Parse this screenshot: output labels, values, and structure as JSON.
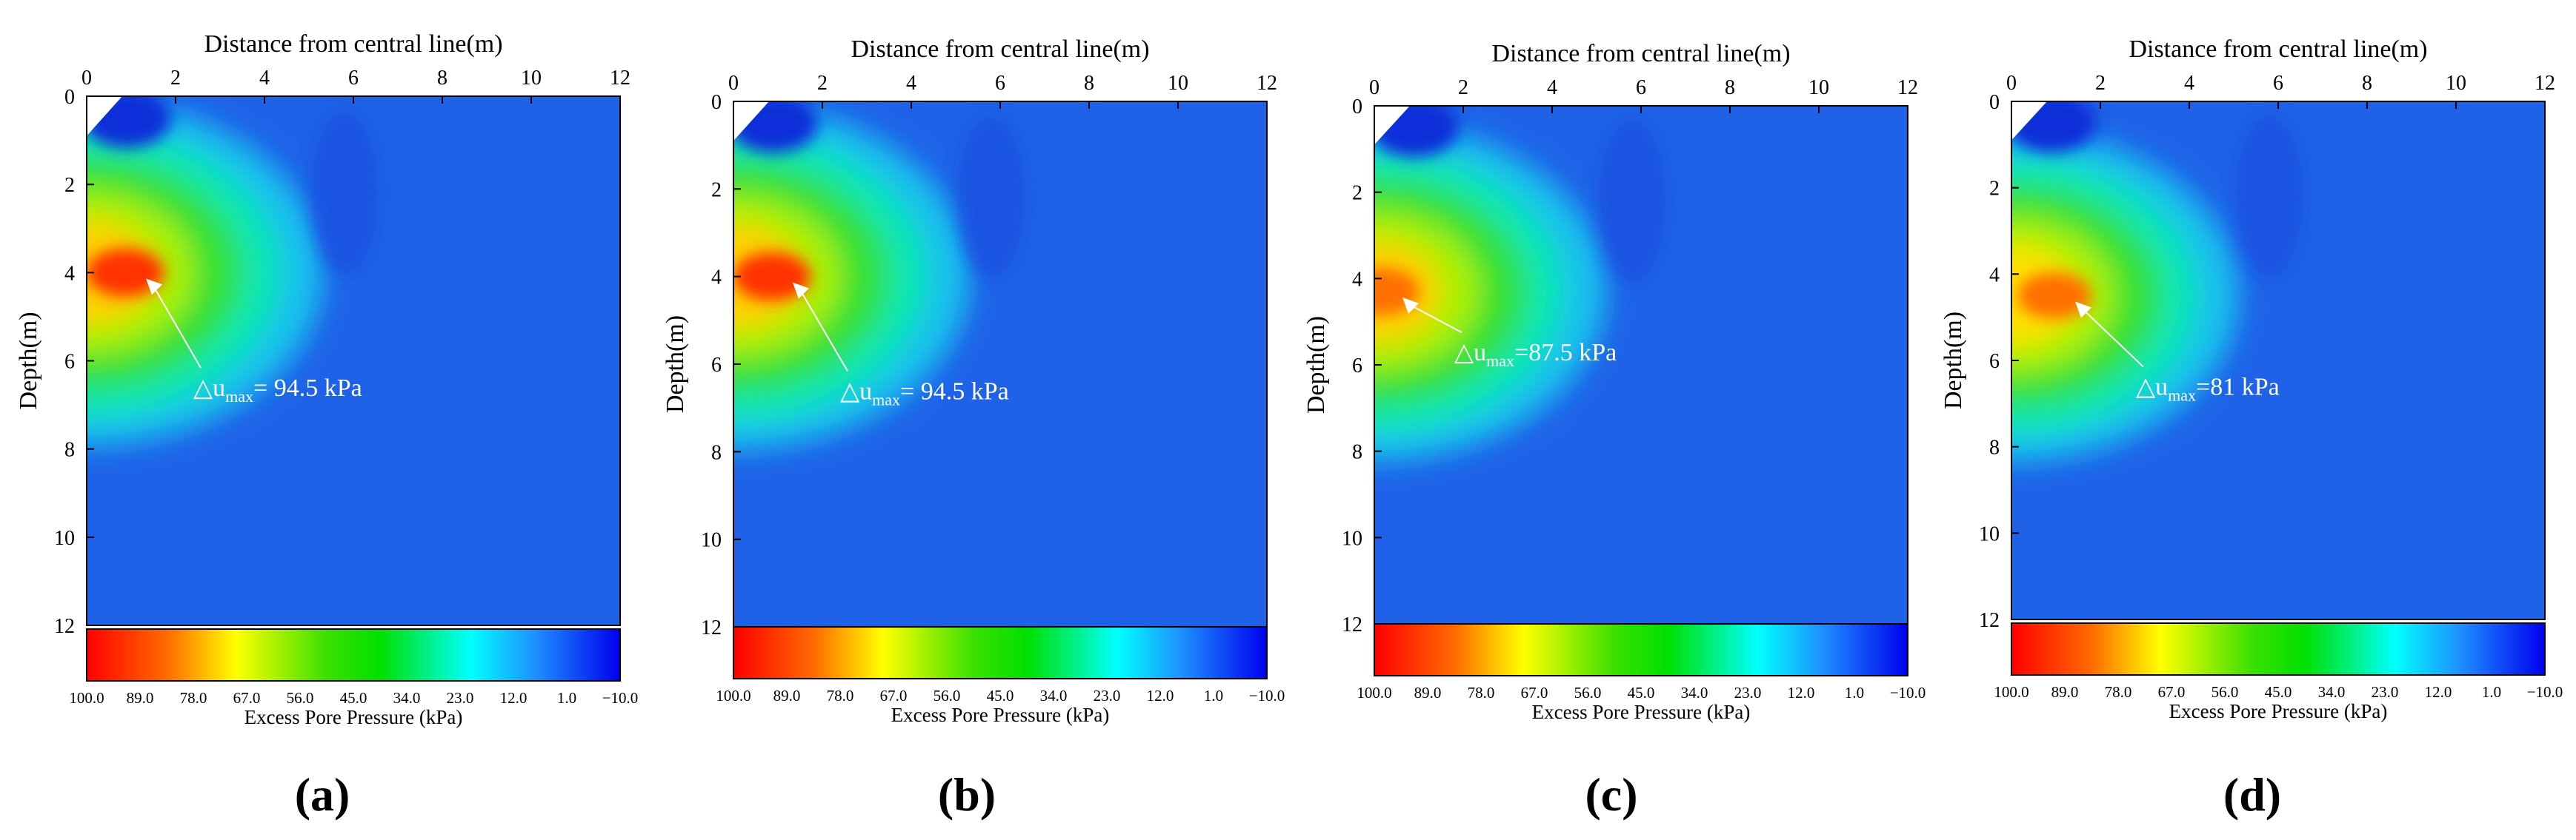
{
  "figure_labels": [
    "(a)",
    "(b)",
    "(c)",
    "(d)"
  ],
  "chart_data": [
    {
      "type": "heatmap",
      "panel": "(a)",
      "title": "Distance from central line(m)",
      "xlabel": "Distance from central line(m)",
      "ylabel": "Depth(m)",
      "xlim": [
        0,
        12
      ],
      "ylim": [
        0,
        12
      ],
      "xticks": [
        "0",
        "2",
        "4",
        "6",
        "8",
        "10",
        "12"
      ],
      "yticks": [
        "0",
        "2",
        "4",
        "6",
        "8",
        "10",
        "12"
      ],
      "peak": {
        "x": 1.2,
        "y": 4.0,
        "value": 94.5
      },
      "annotation": {
        "delta": "△u",
        "sub": "max",
        "text": "= 94.5 kPa",
        "x": 2.4,
        "y": 6.8
      },
      "colorbar": {
        "label": "Excess Pore Pressure (kPa)",
        "ticks": [
          "100.0",
          "89.0",
          "78.0",
          "67.0",
          "56.0",
          "45.0",
          "34.0",
          "23.0",
          "12.0",
          "1.0",
          "−10.0"
        ],
        "range": [
          100,
          -10
        ]
      }
    },
    {
      "type": "heatmap",
      "panel": "(b)",
      "title": "Distance from central line(m)",
      "xlabel": "Distance from central line(m)",
      "ylabel": "Depth(m)",
      "xlim": [
        0,
        12
      ],
      "ylim": [
        0,
        12
      ],
      "xticks": [
        "0",
        "2",
        "4",
        "6",
        "8",
        "10",
        "12"
      ],
      "yticks": [
        "0",
        "2",
        "4",
        "6",
        "8",
        "10",
        "12"
      ],
      "peak": {
        "x": 1.2,
        "y": 4.0,
        "value": 94.5
      },
      "annotation": {
        "delta": "△u",
        "sub": "max",
        "text": "= 94.5 kPa",
        "x": 2.4,
        "y": 6.8
      },
      "colorbar": {
        "label": "Excess Pore Pressure (kPa)",
        "ticks": [
          "100.0",
          "89.0",
          "78.0",
          "67.0",
          "56.0",
          "45.0",
          "34.0",
          "23.0",
          "12.0",
          "1.0",
          "−10.0"
        ],
        "range": [
          100,
          -10
        ]
      }
    },
    {
      "type": "heatmap",
      "panel": "(c)",
      "title": "Distance from central line(m)",
      "xlabel": "Distance from central line(m)",
      "ylabel": "Depth(m)",
      "xlim": [
        0,
        12
      ],
      "ylim": [
        0,
        12
      ],
      "xticks": [
        "0",
        "2",
        "4",
        "6",
        "8",
        "10",
        "12"
      ],
      "yticks": [
        "0",
        "2",
        "4",
        "6",
        "8",
        "10",
        "12"
      ],
      "peak": {
        "x": 0.5,
        "y": 4.3,
        "value": 87.5
      },
      "annotation": {
        "delta": "△u",
        "sub": "max",
        "text": "=87.5 kPa",
        "x": 1.8,
        "y": 5.9
      },
      "colorbar": {
        "label": "Excess Pore Pressure (kPa)",
        "ticks": [
          "100.0",
          "89.0",
          "78.0",
          "67.0",
          "56.0",
          "45.0",
          "34.0",
          "23.0",
          "12.0",
          "1.0",
          "−10.0"
        ],
        "range": [
          100,
          -10
        ]
      }
    },
    {
      "type": "heatmap",
      "panel": "(d)",
      "title": "Distance from central line(m)",
      "xlabel": "Distance from central line(m)",
      "ylabel": "Depth(m)",
      "xlim": [
        0,
        12
      ],
      "ylim": [
        0,
        12
      ],
      "xticks": [
        "0",
        "2",
        "4",
        "6",
        "8",
        "10",
        "12"
      ],
      "yticks": [
        "0",
        "2",
        "4",
        "6",
        "8",
        "10",
        "12"
      ],
      "peak": {
        "x": 1.3,
        "y": 4.5,
        "value": 81
      },
      "annotation": {
        "delta": "△u",
        "sub": "max",
        "text": "=81 kPa",
        "x": 2.8,
        "y": 6.8
      },
      "colorbar": {
        "label": "Excess Pore Pressure (kPa)",
        "ticks": [
          "100.0",
          "89.0",
          "78.0",
          "67.0",
          "56.0",
          "45.0",
          "34.0",
          "23.0",
          "12.0",
          "1.0",
          "−10.0"
        ],
        "range": [
          100,
          -10
        ]
      }
    }
  ]
}
